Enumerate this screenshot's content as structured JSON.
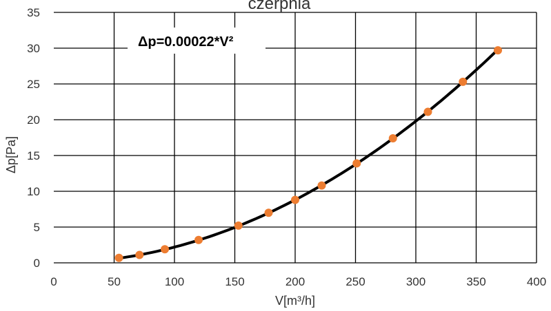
{
  "chart_data": {
    "type": "scatter",
    "title": "czerpnia",
    "xlabel": "V[m³/h]",
    "ylabel": "Δp[Pa]",
    "annotation": "Δp=0.00022*V²",
    "xlim": [
      0,
      400
    ],
    "ylim": [
      0,
      35
    ],
    "xticks": [
      "0",
      "50",
      "100",
      "150",
      "200",
      "250",
      "300",
      "350",
      "400"
    ],
    "yticks": [
      "0",
      "5",
      "10",
      "15",
      "20",
      "25",
      "30",
      "35"
    ],
    "grid": true,
    "legend": "none",
    "trendline_coefficient": 0.00022,
    "series": [
      {
        "x": [
          54,
          71,
          92,
          120,
          153,
          178,
          200,
          222,
          251,
          281,
          310,
          339,
          368
        ],
        "y": [
          0.7,
          1.1,
          1.9,
          3.2,
          5.2,
          7.0,
          8.8,
          10.8,
          13.9,
          17.4,
          21.1,
          25.3,
          29.7
        ],
        "marker_color": "#ED7D31",
        "line_color": "#000000"
      }
    ]
  }
}
